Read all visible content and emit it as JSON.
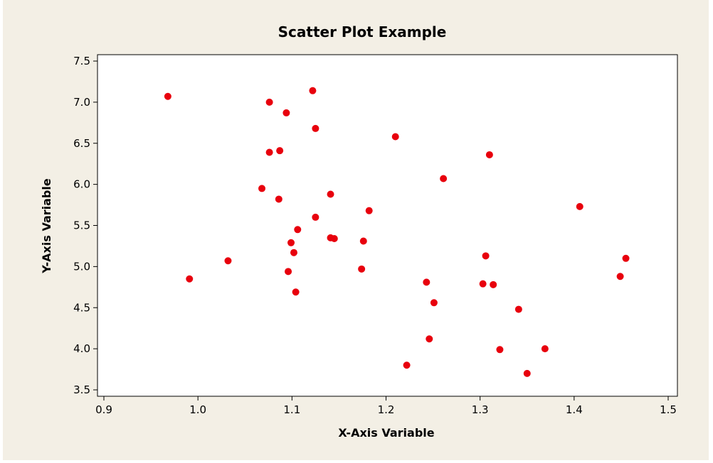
{
  "colors": {
    "figure_background": "#f3efe5",
    "plot_background": "#ffffff",
    "axis": "#000000",
    "marker": "#e8000d"
  },
  "chart_data": {
    "type": "scatter",
    "title": "Scatter Plot Example",
    "xlabel": "X-Axis Variable",
    "ylabel": "Y-Axis Variable",
    "xlim": [
      0.9,
      1.5
    ],
    "ylim": [
      3.5,
      7.5
    ],
    "xticks": [
      "0.9",
      "1.0",
      "1.1",
      "1.2",
      "1.3",
      "1.4",
      "1.5"
    ],
    "yticks": [
      "3.5",
      "4.0",
      "4.5",
      "5.0",
      "5.5",
      "6.0",
      "6.5",
      "7.0",
      "7.5"
    ],
    "grid": false,
    "legend": "none",
    "series": [
      {
        "points": [
          [
            0.968,
            7.07
          ],
          [
            0.991,
            4.85
          ],
          [
            1.032,
            5.07
          ],
          [
            1.068,
            5.95
          ],
          [
            1.076,
            7.0
          ],
          [
            1.076,
            6.39
          ],
          [
            1.086,
            5.82
          ],
          [
            1.087,
            6.41
          ],
          [
            1.094,
            6.87
          ],
          [
            1.096,
            4.94
          ],
          [
            1.099,
            5.29
          ],
          [
            1.102,
            5.17
          ],
          [
            1.104,
            4.69
          ],
          [
            1.106,
            5.45
          ],
          [
            1.122,
            7.14
          ],
          [
            1.125,
            6.68
          ],
          [
            1.125,
            5.6
          ],
          [
            1.141,
            5.88
          ],
          [
            1.141,
            5.35
          ],
          [
            1.145,
            5.34
          ],
          [
            1.174,
            4.97
          ],
          [
            1.176,
            5.31
          ],
          [
            1.182,
            5.68
          ],
          [
            1.21,
            6.58
          ],
          [
            1.222,
            3.8
          ],
          [
            1.243,
            4.81
          ],
          [
            1.246,
            4.12
          ],
          [
            1.251,
            4.56
          ],
          [
            1.261,
            6.07
          ],
          [
            1.303,
            4.79
          ],
          [
            1.306,
            5.13
          ],
          [
            1.31,
            6.36
          ],
          [
            1.314,
            4.78
          ],
          [
            1.321,
            3.99
          ],
          [
            1.341,
            4.48
          ],
          [
            1.35,
            3.7
          ],
          [
            1.369,
            4.0
          ],
          [
            1.406,
            5.73
          ],
          [
            1.449,
            4.88
          ],
          [
            1.455,
            5.1
          ]
        ]
      }
    ]
  }
}
